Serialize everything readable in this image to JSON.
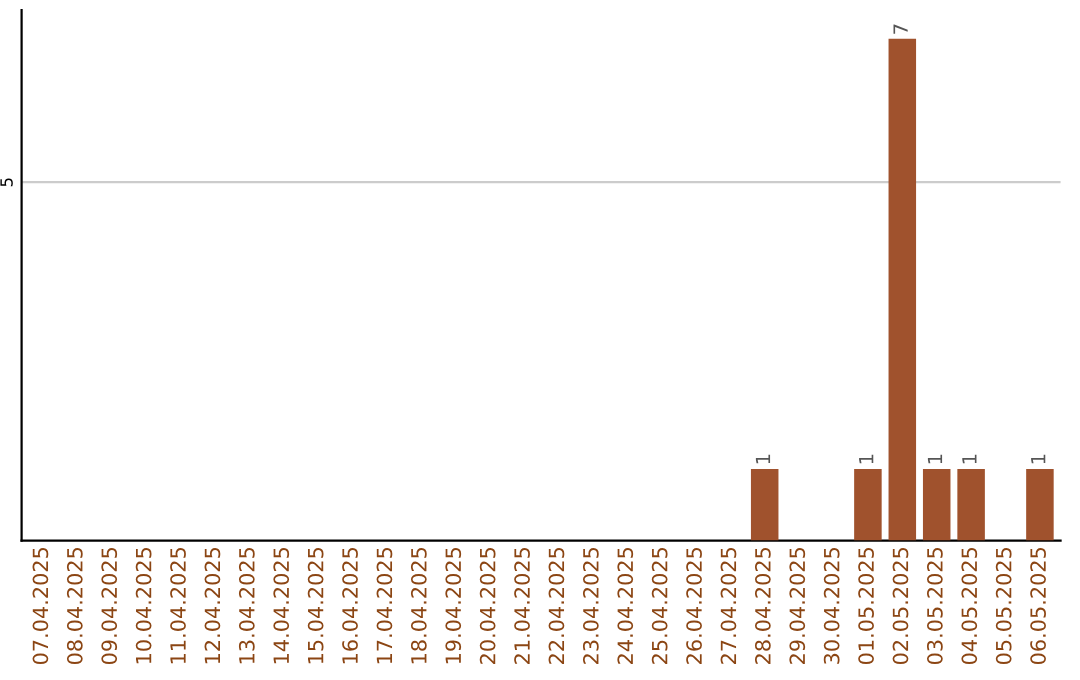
{
  "chart_data": {
    "type": "bar",
    "categories": [
      "07.04.2025",
      "08.04.2025",
      "09.04.2025",
      "10.04.2025",
      "11.04.2025",
      "12.04.2025",
      "13.04.2025",
      "14.04.2025",
      "15.04.2025",
      "16.04.2025",
      "17.04.2025",
      "18.04.2025",
      "19.04.2025",
      "20.04.2025",
      "21.04.2025",
      "22.04.2025",
      "23.04.2025",
      "24.04.2025",
      "25.04.2025",
      "26.04.2025",
      "27.04.2025",
      "28.04.2025",
      "29.04.2025",
      "30.04.2025",
      "01.05.2025",
      "02.05.2025",
      "03.05.2025",
      "04.05.2025",
      "05.05.2025",
      "06.05.2025"
    ],
    "values": [
      null,
      null,
      null,
      null,
      null,
      null,
      null,
      null,
      null,
      null,
      null,
      null,
      null,
      null,
      null,
      null,
      null,
      null,
      null,
      null,
      null,
      1,
      null,
      null,
      1,
      7,
      1,
      1,
      null,
      1
    ],
    "color": "#a0522d",
    "value_labels": [
      null,
      null,
      null,
      null,
      null,
      null,
      null,
      null,
      null,
      null,
      null,
      null,
      null,
      null,
      null,
      null,
      null,
      null,
      null,
      null,
      null,
      "1",
      null,
      null,
      "1",
      "7",
      "1",
      "1",
      null,
      "1"
    ],
    "ylim": [
      0,
      7.4
    ],
    "yticks": [
      5
    ],
    "grid": "y"
  }
}
